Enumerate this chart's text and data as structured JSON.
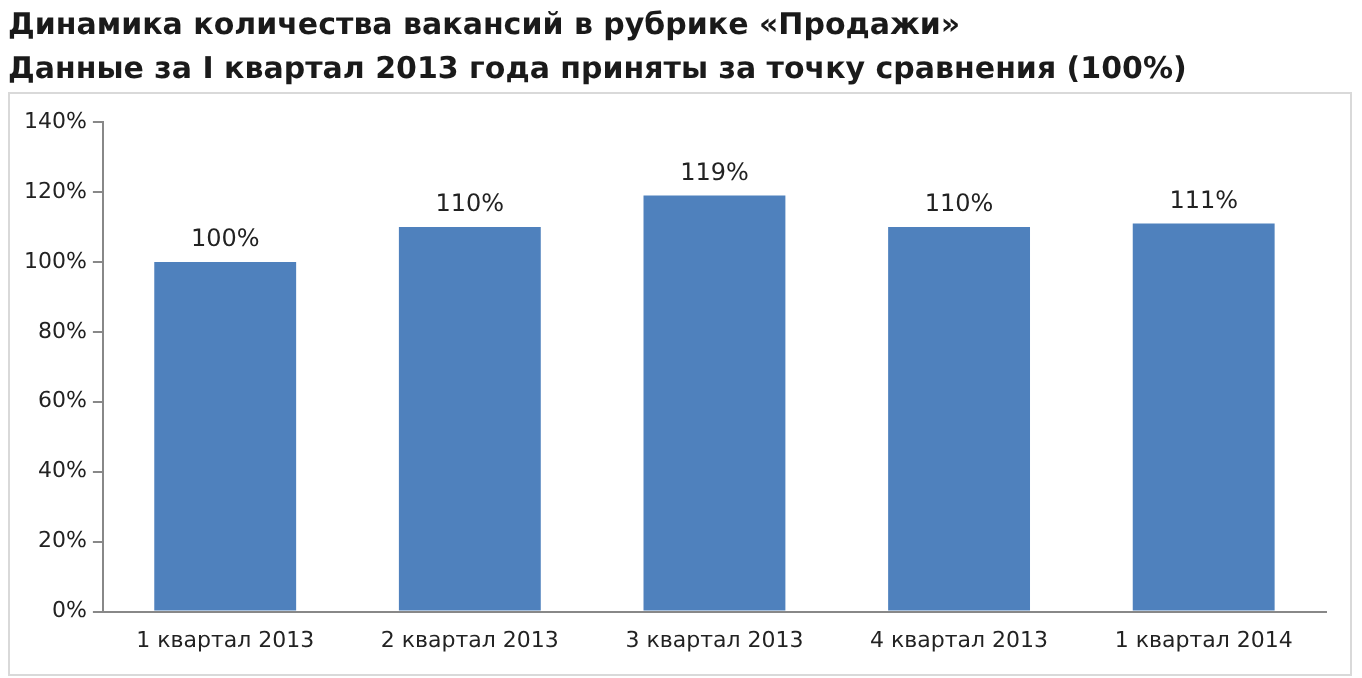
{
  "chart_data": {
    "type": "bar",
    "title": "Динамика количества вакансий в рубрике «Продажи»",
    "subtitle": "Данные за I квартал 2013 года приняты за точку сравнения (100%)",
    "categories": [
      "1 квартал 2013",
      "2 квартал 2013",
      "3 квартал 2013",
      "4 квартал 2013",
      "1 квартал 2014"
    ],
    "values": [
      100,
      110,
      119,
      110,
      111
    ],
    "color": "#4f81bd",
    "ylim": [
      0,
      140
    ],
    "yticks": [
      {
        "value": 0,
        "label": "0%"
      },
      {
        "value": 20,
        "label": "20%"
      },
      {
        "value": 40,
        "label": "40%"
      },
      {
        "value": 60,
        "label": "60%"
      },
      {
        "value": 80,
        "label": "80%"
      },
      {
        "value": 100,
        "label": "100%"
      },
      {
        "value": 120,
        "label": "120%"
      },
      {
        "value": 140,
        "label": "140%"
      }
    ],
    "value_labels": [
      "100%",
      "110%",
      "119%",
      "110%",
      "111%"
    ],
    "grid": false,
    "legend": false
  }
}
